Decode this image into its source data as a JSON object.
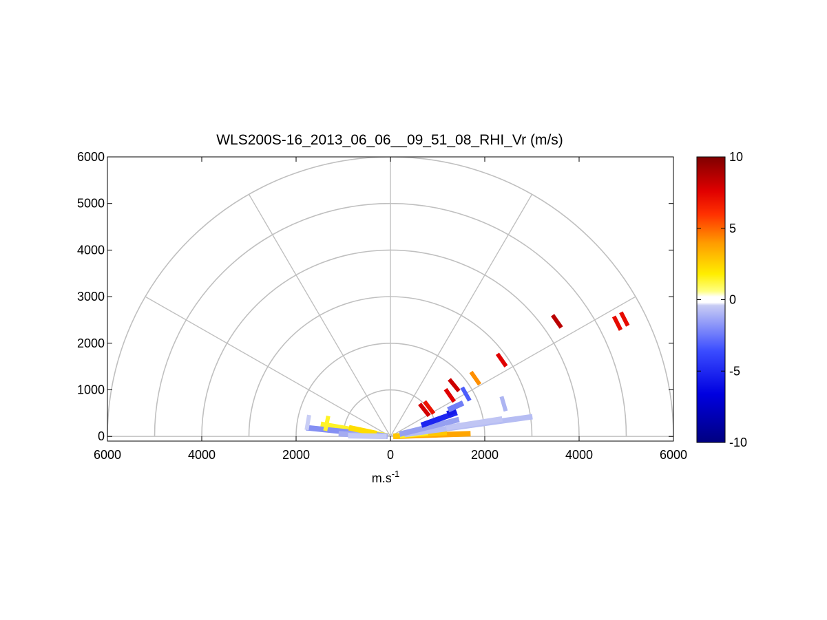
{
  "chart_data": {
    "type": "polar-rhi",
    "title": "WLS200S-16_2013_06_06__09_51_08_RHI_Vr (m/s)",
    "xlabel": "m.s",
    "xlabel_superscript": "-1",
    "x_ticks": [
      -6000,
      -4000,
      -2000,
      0,
      2000,
      4000,
      6000
    ],
    "x_tick_labels": [
      "6000",
      "4000",
      "2000",
      "0",
      "2000",
      "4000",
      "6000"
    ],
    "y_ticks": [
      0,
      1000,
      2000,
      3000,
      4000,
      5000,
      6000
    ],
    "y_tick_labels": [
      "0",
      "1000",
      "2000",
      "3000",
      "4000",
      "5000",
      "6000"
    ],
    "xlim": [
      -6000,
      6000
    ],
    "ylim": [
      -100,
      6000
    ],
    "range_rings": [
      1000,
      2000,
      3000,
      4000,
      5000,
      6000
    ],
    "spoke_angles_deg": [
      0,
      30,
      60,
      90,
      120,
      150,
      180
    ],
    "grid_color": "#c0c0c0",
    "colorbar": {
      "min": -10,
      "max": 10,
      "ticks": [
        10,
        5,
        0,
        -5,
        -10
      ],
      "tick_labels": [
        "10",
        "5",
        "0",
        "-5",
        "-10"
      ]
    },
    "beams": [
      {
        "elevation_deg": 2,
        "r_start": 60,
        "r_end": 1700,
        "velocity": 2.8
      },
      {
        "elevation_deg": 4,
        "r_start": 60,
        "r_end": 1200,
        "velocity": 2.2
      },
      {
        "elevation_deg": 6,
        "r_start": 200,
        "r_end": 800,
        "velocity": 1.2
      },
      {
        "elevation_deg": 8,
        "r_start": 300,
        "r_end": 3040,
        "velocity": -0.8
      },
      {
        "elevation_deg": 9,
        "r_start": 1200,
        "r_end": 2400,
        "velocity": -0.6
      },
      {
        "elevation_deg": 14,
        "r_start": 200,
        "r_end": 1500,
        "velocity": -1.5
      },
      {
        "elevation_deg": 20,
        "r_start": 700,
        "r_end": 1500,
        "velocity": -5.5
      },
      {
        "elevation_deg": 22,
        "r_start": 1300,
        "r_end": 1500,
        "velocity": -6.0
      },
      {
        "elevation_deg": 25,
        "r_start": 1350,
        "r_end": 1700,
        "velocity": -2.5
      },
      {
        "elevation_deg": 170,
        "r_start": 60,
        "r_end": 1500,
        "velocity": 1.2
      },
      {
        "elevation_deg": 174,
        "r_start": 60,
        "r_end": 1800,
        "velocity": -2.0
      },
      {
        "elevation_deg": 177,
        "r_start": 60,
        "r_end": 1100,
        "velocity": -1.2
      },
      {
        "elevation_deg": 168,
        "r_start": 300,
        "r_end": 900,
        "velocity": 1.8
      },
      {
        "elevation_deg": 179,
        "r_start": 80,
        "r_end": 900,
        "velocity": -0.5
      }
    ],
    "cells": [
      {
        "x": 3530,
        "y": 2470,
        "velocity": 8.5
      },
      {
        "x": 4810,
        "y": 2430,
        "velocity": 7.0
      },
      {
        "x": 4960,
        "y": 2520,
        "velocity": 7.0
      },
      {
        "x": 2360,
        "y": 1640,
        "velocity": 7.5
      },
      {
        "x": 1800,
        "y": 1250,
        "velocity": 3.2
      },
      {
        "x": 1350,
        "y": 1100,
        "velocity": 8.0
      },
      {
        "x": 1260,
        "y": 880,
        "velocity": 7.5
      },
      {
        "x": 820,
        "y": 620,
        "velocity": 6.5
      },
      {
        "x": 720,
        "y": 570,
        "velocity": 7.8
      },
      {
        "x": 1600,
        "y": 910,
        "velocity": -3.5
      },
      {
        "x": 2400,
        "y": 700,
        "velocity": -1.0
      },
      {
        "x": -1750,
        "y": 300,
        "velocity": -0.4
      },
      {
        "x": -1350,
        "y": 280,
        "velocity": 1.2
      }
    ]
  }
}
